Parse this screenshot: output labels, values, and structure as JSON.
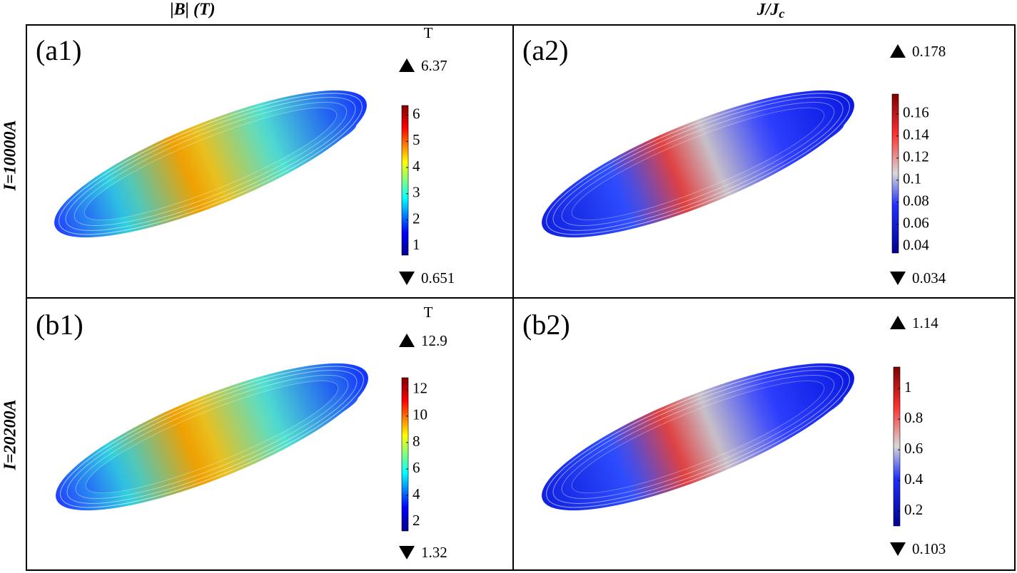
{
  "col_headers": [
    {
      "text": "|B| (T)"
    },
    {
      "text": "J/J",
      "subscript": "c"
    }
  ],
  "row_labels": [
    "I=10000A",
    "I=20200A"
  ],
  "panels": [
    {
      "label": "(a1)",
      "unit": "T",
      "max": 6.37,
      "min": 0.651,
      "ticks": [
        1,
        2,
        3,
        4,
        5,
        6
      ]
    },
    {
      "label": "(a2)",
      "max": 0.178,
      "min": 0.034,
      "ticks": [
        0.04,
        0.06,
        0.08,
        0.1,
        0.12,
        0.14,
        0.16
      ]
    },
    {
      "label": "(b1)",
      "unit": "T",
      "max": 12.9,
      "min": 1.32,
      "ticks": [
        2,
        4,
        6,
        8,
        10,
        12
      ]
    },
    {
      "label": "(b2)",
      "max": 1.14,
      "min": 0.103,
      "ticks": [
        0.2,
        0.4,
        0.6,
        0.8,
        1
      ]
    }
  ]
}
